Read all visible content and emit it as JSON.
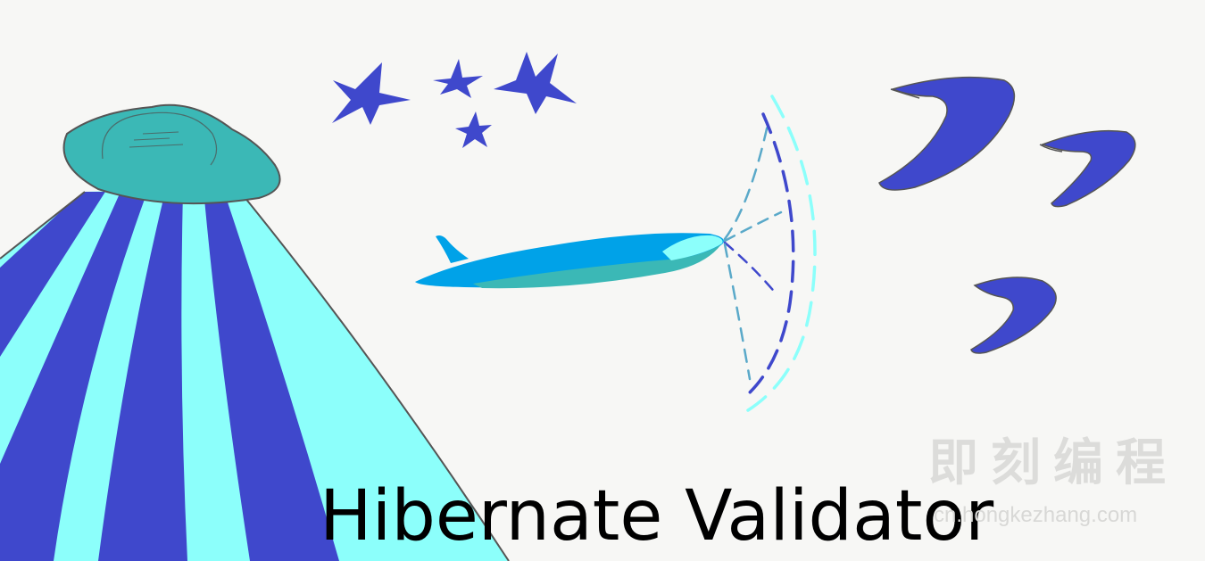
{
  "title": "Hibernate Validator",
  "watermark": {
    "brand": "即刻编程",
    "url": "cn.hongkezhang.com"
  },
  "colors": {
    "background": "#f7f7f5",
    "teal": "#3bb8b6",
    "indigo": "#3f48cc",
    "aqua": "#8cfffb",
    "sky": "#00a2e8",
    "outline": "#555555"
  },
  "illustration": {
    "elements": [
      "ufo-icon",
      "tractor-beam",
      "star-icon",
      "whale-icon",
      "sonar-waves",
      "boomerang-icon"
    ]
  }
}
